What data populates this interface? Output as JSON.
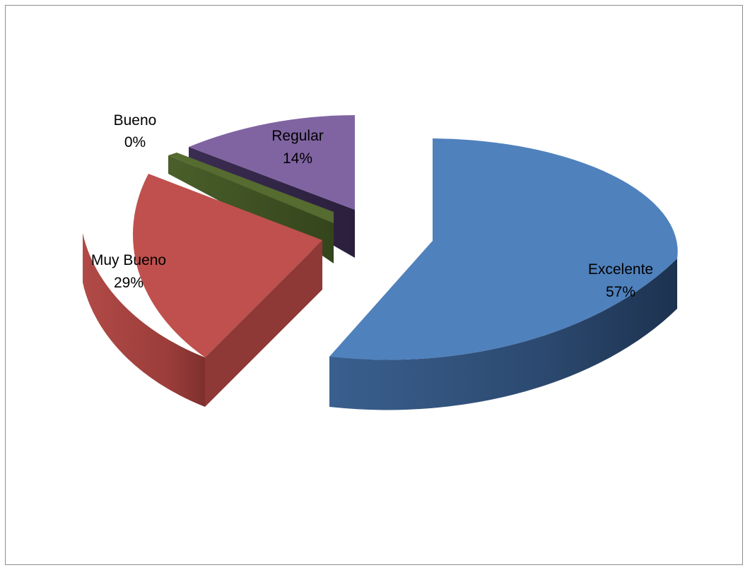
{
  "chart_data": {
    "type": "pie",
    "style": "3d-exploded",
    "title": "",
    "legend": "none",
    "slices": [
      {
        "name": "Excelente",
        "value": 57,
        "percent_label": "57%",
        "color": "#4F81BD"
      },
      {
        "name": "Muy Bueno",
        "value": 29,
        "percent_label": "29%",
        "color": "#C0504D"
      },
      {
        "name": "Bueno",
        "value": 0,
        "percent_label": "0%",
        "color": "#9BBB59"
      },
      {
        "name": "Regular",
        "value": 14,
        "percent_label": "14%",
        "color": "#8064A2"
      }
    ]
  }
}
